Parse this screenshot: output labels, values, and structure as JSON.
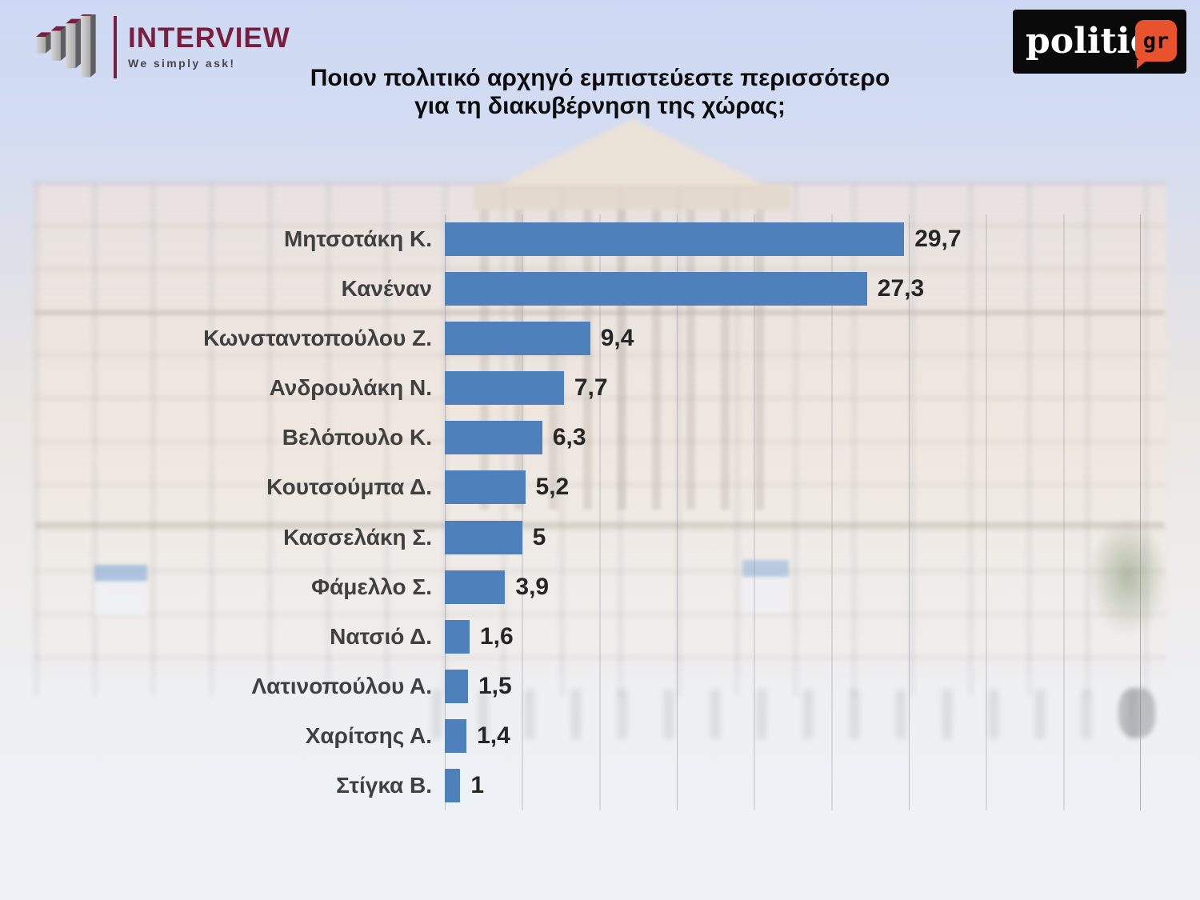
{
  "header": {
    "interview_logo": {
      "brand": "INTERVIEW",
      "tagline": "We simply ask!",
      "brand_color": "#7A1E3E"
    },
    "politic_logo": {
      "brand": "politic",
      "suffix": "gr",
      "badge_color": "#E8522D",
      "box_color": "#0A0A0A"
    },
    "title_line1": "Ποιον πολιτικό αρχηγό εμπιστεύεστε περισσότερο",
    "title_line2": "για τη διακυβέρνηση της χώρας;"
  },
  "chart_data": {
    "type": "bar",
    "orientation": "horizontal",
    "title": "Ποιον πολιτικό αρχηγό εμπιστεύεστε περισσότερο για τη διακυβέρνηση της χώρας;",
    "categories": [
      "Μητσοτάκη Κ.",
      "Κανέναν",
      "Κωνσταντοπούλου Ζ.",
      "Ανδρουλάκη Ν.",
      "Βελόπουλο Κ.",
      "Κουτσούμπα Δ.",
      "Κασσελάκη Σ.",
      "Φάμελλο Σ.",
      "Νατσιό Δ.",
      "Λατινοπούλου Α.",
      "Χαρίτσης Α.",
      "Στίγκα Β."
    ],
    "values": [
      29.7,
      27.3,
      9.4,
      7.7,
      6.3,
      5.2,
      5,
      3.9,
      1.6,
      1.5,
      1.4,
      1
    ],
    "value_labels": [
      "29,7",
      "27,3",
      "9,4",
      "7,7",
      "6,3",
      "5,2",
      "5",
      "3,9",
      "1,6",
      "1,5",
      "1,4",
      "1"
    ],
    "xlim": [
      0,
      45
    ],
    "gridline_interval": 5,
    "grid": true,
    "legend": "none",
    "bar_color": "#4E80BC",
    "category_label_color": "#404040",
    "value_label_color": "#262626",
    "gridline_color": "#94969E"
  }
}
